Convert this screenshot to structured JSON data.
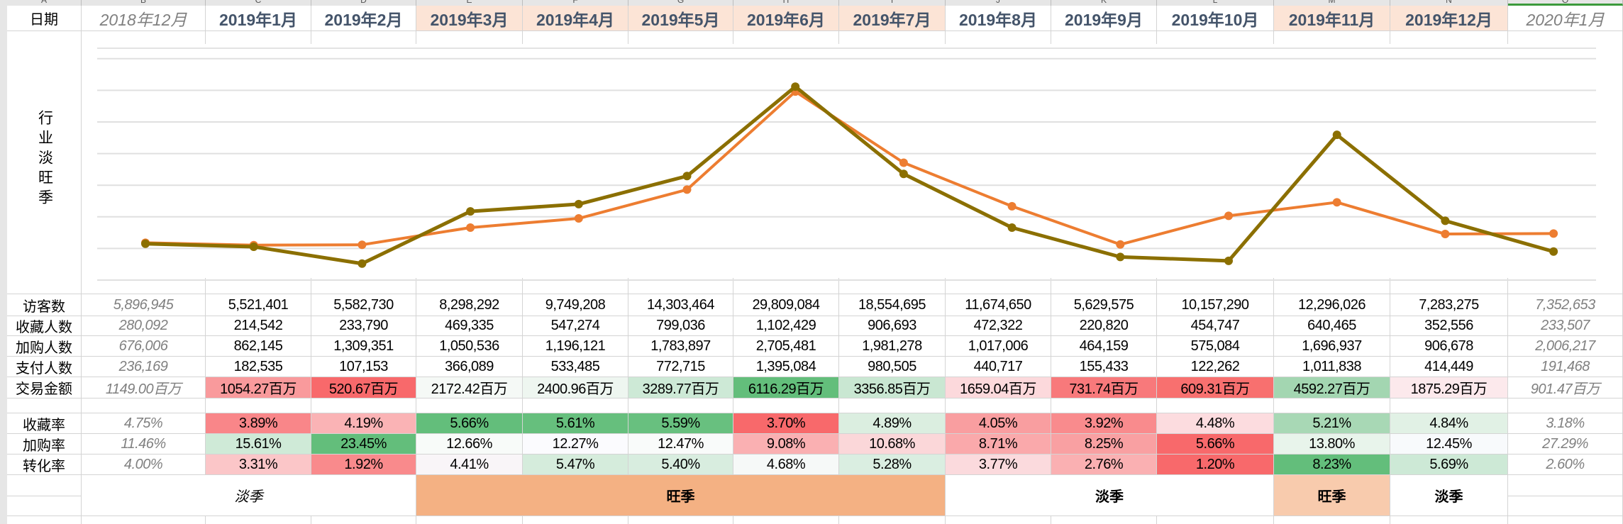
{
  "column_letters": [
    "A",
    "B",
    "C",
    "D",
    "E",
    "F",
    "G",
    "H",
    "I",
    "J",
    "K",
    "L",
    "M",
    "N",
    "O"
  ],
  "selected_column": "O",
  "date_label": "日期",
  "dates": [
    "2018年12月",
    "2019年1月",
    "2019年2月",
    "2019年3月",
    "2019年4月",
    "2019年5月",
    "2019年6月",
    "2019年7月",
    "2019年8月",
    "2019年9月",
    "2019年10月",
    "2019年11月",
    "2019年12月",
    "2020年1月"
  ],
  "date_fills": [
    "",
    "",
    "",
    "#fce4d6",
    "#fce4d6",
    "#fce4d6",
    "#fce4d6",
    "#fce4d6",
    "",
    "",
    "",
    "#fce4d6",
    "#fce4d6",
    ""
  ],
  "chart_label": "行业淡旺季",
  "chart_data": {
    "type": "line",
    "categories": [
      "2018年12月",
      "2019年1月",
      "2019年2月",
      "2019年3月",
      "2019年4月",
      "2019年5月",
      "2019年6月",
      "2019年7月",
      "2019年8月",
      "2019年9月",
      "2019年10月",
      "2019年11月",
      "2019年12月",
      "2020年1月"
    ],
    "series": [
      {
        "axis": "primary",
        "color": "#ed7d31",
        "values": [
          5896945,
          5521401,
          5582730,
          8298292,
          9749208,
          14303464,
          29809084,
          18554695,
          11674650,
          5629575,
          10157290,
          12296026,
          7283275,
          7352653
        ]
      },
      {
        "axis": "secondary",
        "color": "#8b6f00",
        "values": [
          1149.0,
          1054.27,
          520.67,
          2172.42,
          2400.96,
          3289.77,
          6116.29,
          3356.85,
          1659.04,
          731.74,
          609.31,
          4592.27,
          1875.29,
          901.47
        ]
      }
    ],
    "primary_ylim": [
      0,
      35000000
    ],
    "secondary_ylim": [
      0,
      7000
    ],
    "grid": true,
    "axis_labels_shown": false,
    "legend": "none"
  },
  "metrics": [
    {
      "label": "访客数",
      "values": [
        "5,896,945",
        "5,521,401",
        "5,582,730",
        "8,298,292",
        "9,749,208",
        "14,303,464",
        "29,809,084",
        "18,554,695",
        "11,674,650",
        "5,629,575",
        "10,157,290",
        "12,296,026",
        "7,283,275",
        "7,352,653"
      ],
      "fills": []
    },
    {
      "label": "收藏人数",
      "values": [
        "280,092",
        "214,542",
        "233,790",
        "469,335",
        "547,274",
        "799,036",
        "1,102,429",
        "906,693",
        "472,322",
        "220,820",
        "454,747",
        "640,465",
        "352,556",
        "233,507"
      ],
      "fills": []
    },
    {
      "label": "加购人数",
      "values": [
        "676,006",
        "862,145",
        "1,309,351",
        "1,050,536",
        "1,196,121",
        "1,783,897",
        "2,705,481",
        "1,981,278",
        "1,017,006",
        "464,159",
        "575,084",
        "1,696,937",
        "906,678",
        "2,006,217"
      ],
      "fills": []
    },
    {
      "label": "支付人数",
      "values": [
        "236,169",
        "182,535",
        "107,153",
        "366,089",
        "533,485",
        "772,715",
        "1,395,084",
        "980,505",
        "440,717",
        "155,433",
        "122,262",
        "1,011,838",
        "414,449",
        "191,468"
      ],
      "fills": []
    },
    {
      "label": "交易金额",
      "values": [
        "1149.00百万",
        "1054.27百万",
        "520.67百万",
        "2172.42百万",
        "2400.96百万",
        "3289.77百万",
        "6116.29百万",
        "3356.85百万",
        "1659.04百万",
        "731.74百万",
        "609.31百万",
        "4592.27百万",
        "1875.29百万",
        "901.47百万"
      ],
      "fills": [
        "",
        "#f99a9c",
        "#f8696b",
        "#f5f9f6",
        "#eef6f0",
        "#cde9d6",
        "#63be7b",
        "#c9e7d2",
        "#fcd9dc",
        "#f8797b",
        "#f8706f",
        "#a3d6b1",
        "#fce9ec",
        ""
      ]
    }
  ],
  "rates": [
    {
      "label": "收藏率",
      "values": [
        "4.75%",
        "3.89%",
        "4.19%",
        "5.66%",
        "5.61%",
        "5.59%",
        "3.70%",
        "4.89%",
        "4.05%",
        "3.92%",
        "4.48%",
        "5.21%",
        "4.84%",
        "3.18%"
      ],
      "fills": [
        "",
        "#f98689",
        "#fab3b5",
        "#63be7b",
        "#66bf7d",
        "#68c07f",
        "#f8696b",
        "#dbeee0",
        "#f99ea0",
        "#f98b8d",
        "#fcdcdf",
        "#a8d8b5",
        "#e1f1e5",
        ""
      ]
    },
    {
      "label": "加购率",
      "values": [
        "11.46%",
        "15.61%",
        "23.45%",
        "12.66%",
        "12.27%",
        "12.47%",
        "9.08%",
        "10.68%",
        "8.71%",
        "8.25%",
        "5.66%",
        "13.80%",
        "12.45%",
        "27.29%"
      ],
      "fills": [
        "",
        "#cfead7",
        "#63be7b",
        "#f8fbf9",
        "#fbfbfe",
        "#f9fbfa",
        "#fab0b2",
        "#fbd7d9",
        "#faa9ab",
        "#f9a0a2",
        "#f8696b",
        "#e8f4eb",
        "#f8fafc",
        ""
      ]
    },
    {
      "label": "转化率",
      "values": [
        "4.00%",
        "3.31%",
        "1.92%",
        "4.41%",
        "5.47%",
        "5.40%",
        "4.68%",
        "5.28%",
        "3.77%",
        "2.76%",
        "1.20%",
        "8.23%",
        "5.69%",
        "2.60%"
      ],
      "fills": [
        "",
        "#fbc6c8",
        "#f98a8c",
        "#f9f5f8",
        "#d5ecdc",
        "#d8eddf",
        "#f6f9f8",
        "#daeee1",
        "#fbdadd",
        "#fab0b2",
        "#f8696b",
        "#63be7b",
        "#cde9d6",
        ""
      ]
    }
  ],
  "seasons": [
    {
      "label": "淡季",
      "from": 0,
      "to": 2,
      "fill": "",
      "hist": true
    },
    {
      "label": "旺季",
      "from": 3,
      "to": 7,
      "fill": "#f4b183",
      "hist": false
    },
    {
      "label": "淡季",
      "from": 8,
      "to": 10,
      "fill": "",
      "hist": false
    },
    {
      "label": "旺季",
      "from": 11,
      "to": 11,
      "fill": "#f8cbad",
      "hist": false
    },
    {
      "label": "淡季",
      "from": 12,
      "to": 12,
      "fill": "",
      "hist": false
    }
  ]
}
